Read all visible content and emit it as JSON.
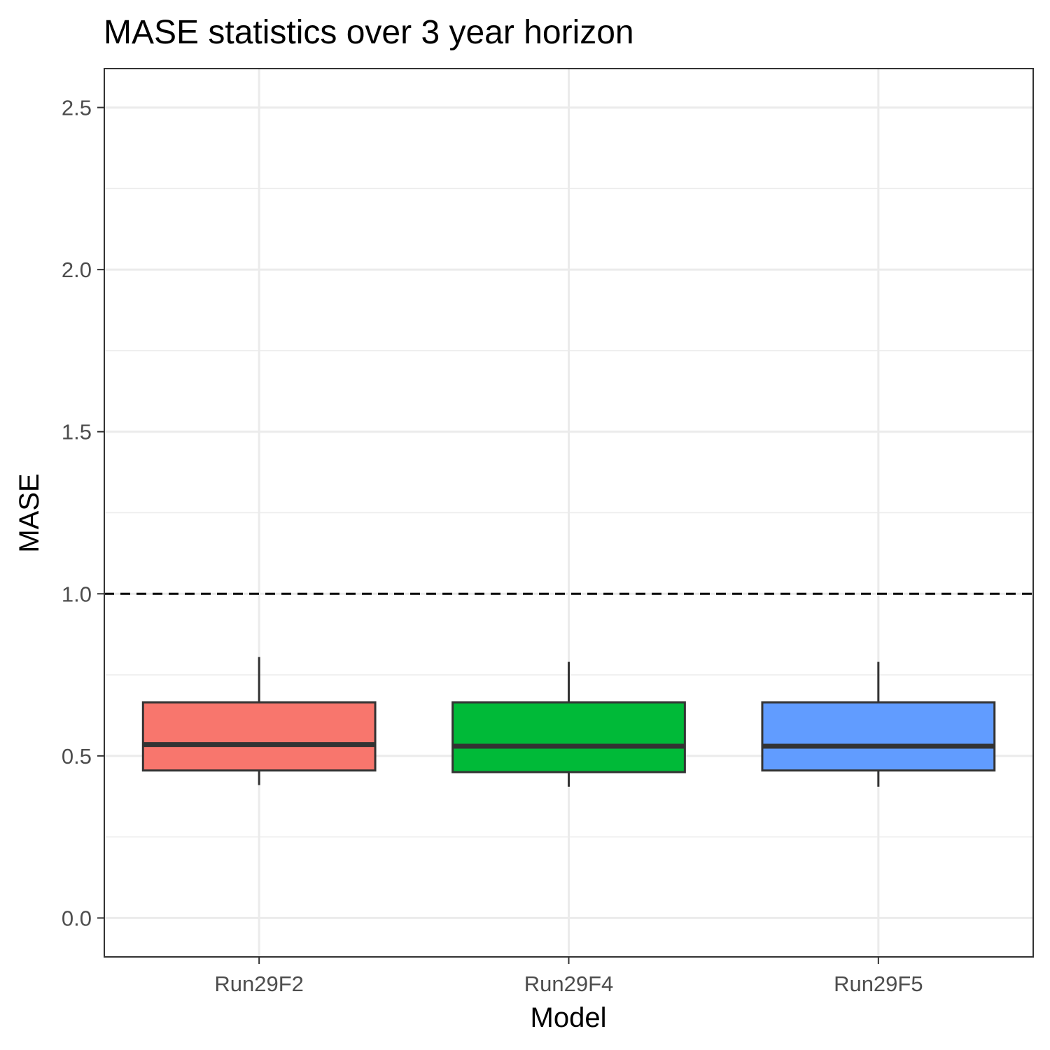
{
  "chart_data": {
    "type": "boxplot",
    "title": "MASE statistics over 3 year horizon",
    "xlabel": "Model",
    "ylabel": "MASE",
    "ylim": [
      -0.12,
      2.62
    ],
    "yticks": [
      0.0,
      0.5,
      1.0,
      1.5,
      2.0,
      2.5
    ],
    "ytick_labels": [
      "0.0",
      "0.5",
      "1.0",
      "1.5",
      "2.0",
      "2.5"
    ],
    "reference_line": {
      "y": 1.0,
      "style": "dashed",
      "color": "#000000"
    },
    "grid": true,
    "legend": "none",
    "categories": [
      "Run29F2",
      "Run29F4",
      "Run29F5"
    ],
    "boxes": [
      {
        "name": "Run29F2",
        "min": 0.41,
        "q1": 0.455,
        "median": 0.535,
        "q3": 0.665,
        "max": 0.805,
        "color": "#F8766D"
      },
      {
        "name": "Run29F4",
        "min": 0.405,
        "q1": 0.45,
        "median": 0.53,
        "q3": 0.665,
        "max": 0.79,
        "color": "#00BA38"
      },
      {
        "name": "Run29F5",
        "min": 0.405,
        "q1": 0.455,
        "median": 0.53,
        "q3": 0.665,
        "max": 0.79,
        "color": "#619CFF"
      }
    ]
  }
}
